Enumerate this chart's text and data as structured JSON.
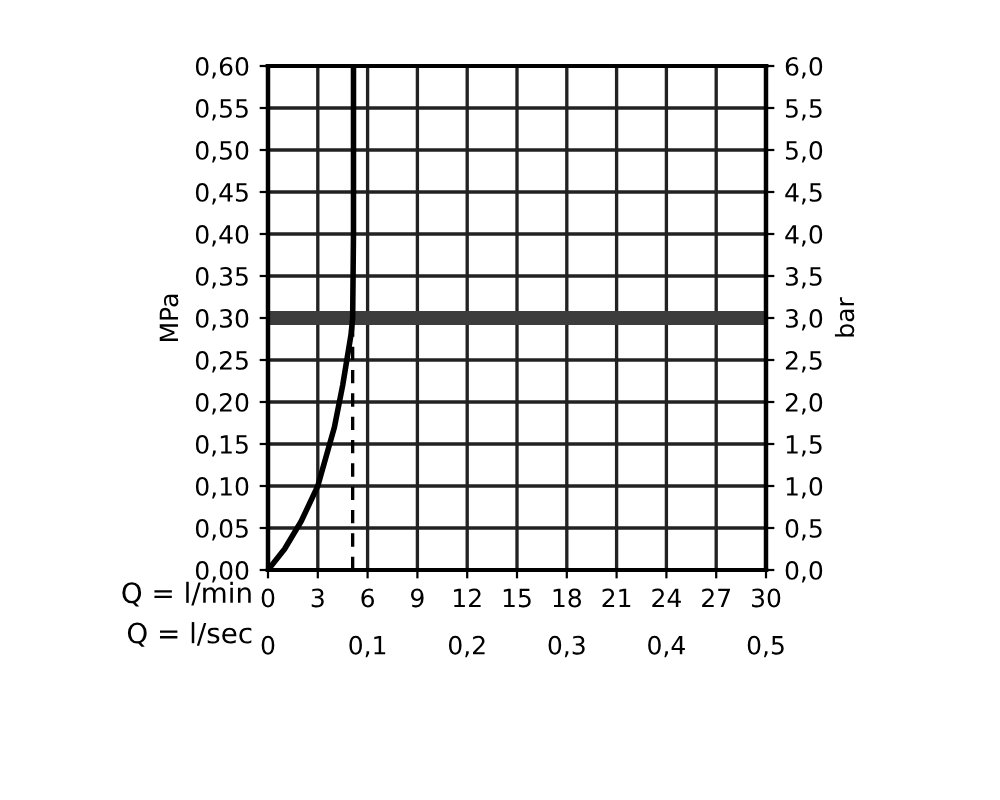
{
  "chart_data": {
    "type": "line",
    "xlabel": "Q = l/min",
    "x2label": "Q = l/sec",
    "ylabel": "MPa",
    "y2label": "bar",
    "xlim": [
      0,
      30
    ],
    "xticks": [
      0,
      3,
      6,
      9,
      12,
      15,
      18,
      21,
      24,
      27,
      30
    ],
    "x2lim": [
      0,
      0.5
    ],
    "x2ticks": [
      0,
      {
        "value": 0.1,
        "label": "0,1"
      },
      {
        "value": 0.2,
        "label": "0,2"
      },
      {
        "value": 0.3,
        "label": "0,3"
      },
      {
        "value": 0.4,
        "label": "0,4"
      },
      {
        "value": 0.5,
        "label": "0,5"
      }
    ],
    "ylim": [
      0,
      0.6
    ],
    "yticks": [
      {
        "value": 0,
        "label": "0,00"
      },
      {
        "value": 0.05,
        "label": "0,05"
      },
      {
        "value": 0.1,
        "label": "0,10"
      },
      {
        "value": 0.15,
        "label": "0,15"
      },
      {
        "value": 0.2,
        "label": "0,20"
      },
      {
        "value": 0.25,
        "label": "0,25"
      },
      {
        "value": 0.3,
        "label": "0,30"
      },
      {
        "value": 0.35,
        "label": "0,35"
      },
      {
        "value": 0.4,
        "label": "0,40"
      },
      {
        "value": 0.45,
        "label": "0,45"
      },
      {
        "value": 0.5,
        "label": "0,50"
      },
      {
        "value": 0.55,
        "label": "0,55"
      },
      {
        "value": 0.6,
        "label": "0,60"
      }
    ],
    "y2lim": [
      0,
      6
    ],
    "y2ticks": [
      {
        "value": 0,
        "label": "0,0"
      },
      {
        "value": 0.5,
        "label": "0,5"
      },
      {
        "value": 1,
        "label": "1,0"
      },
      {
        "value": 1.5,
        "label": "1,5"
      },
      {
        "value": 2,
        "label": "2,0"
      },
      {
        "value": 2.5,
        "label": "2,5"
      },
      {
        "value": 3,
        "label": "3,0"
      },
      {
        "value": 3.5,
        "label": "3,5"
      },
      {
        "value": 4,
        "label": "4,0"
      },
      {
        "value": 4.5,
        "label": "4,5"
      },
      {
        "value": 5,
        "label": "5,0"
      },
      {
        "value": 5.5,
        "label": "5,5"
      },
      {
        "value": 6,
        "label": "6,0"
      }
    ],
    "grid": true,
    "marker": "none",
    "series": [
      {
        "color": "#000000",
        "line_style": "solid",
        "x": [
          0,
          1,
          2,
          3,
          4,
          4.5,
          5,
          5.1,
          5.15,
          5.15
        ],
        "values": [
          0,
          0.025,
          0.058,
          0.1,
          0.17,
          0.22,
          0.28,
          0.3,
          0.4,
          0.6
        ]
      },
      {
        "color": "#000000",
        "line_style": "dashed",
        "x": [
          5.1,
          5.1
        ],
        "values": [
          0,
          0.3
        ]
      }
    ],
    "ref_lines": [
      {
        "axis": "y",
        "value": 0.3,
        "color": "#3c3c3c"
      }
    ]
  }
}
